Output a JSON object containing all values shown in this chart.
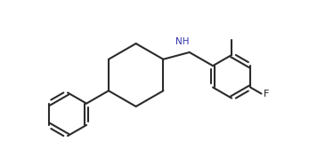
{
  "background_color": "#ffffff",
  "line_width": 1.5,
  "bond_color": "#2b2b2b",
  "label_color": "#1a1a1a",
  "figsize": [
    3.56,
    1.86
  ],
  "dpi": 100,
  "NH_label": "NH",
  "F_label": "F",
  "xlim": [
    0.0,
    10.5
  ],
  "ylim": [
    0.3,
    5.5
  ]
}
